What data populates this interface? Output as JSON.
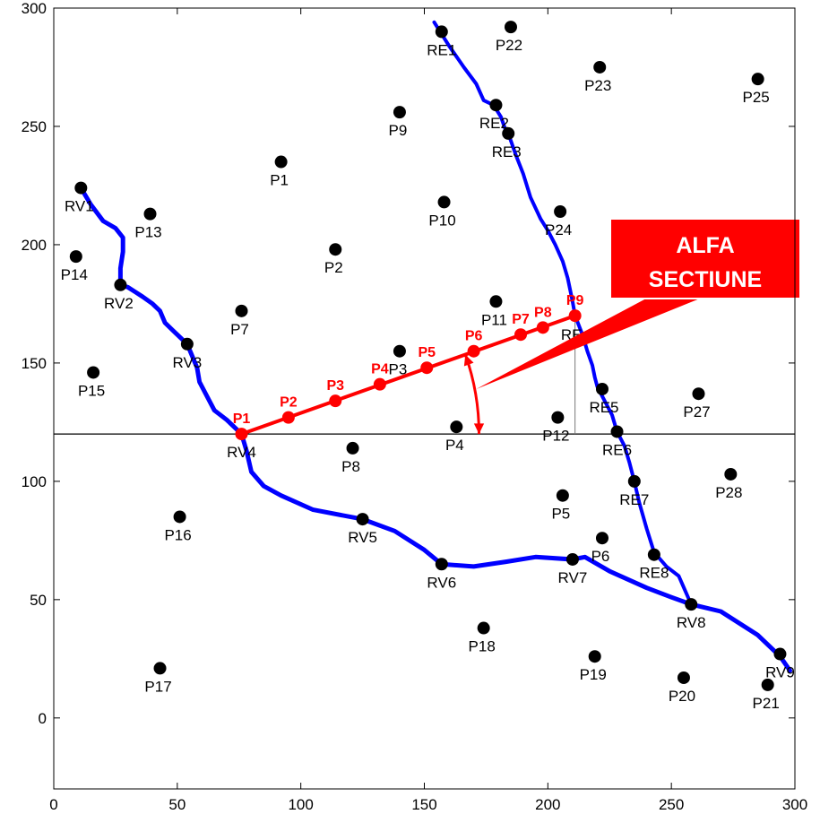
{
  "chart_data": {
    "type": "scatter",
    "xlim": [
      0,
      300
    ],
    "ylim": [
      -30,
      300
    ],
    "x_ticks": [
      0,
      50,
      100,
      150,
      200,
      250,
      300
    ],
    "y_ticks": [
      0,
      50,
      100,
      150,
      200,
      250,
      300
    ],
    "x_tick_labels": [
      "0",
      "50",
      "100",
      "150",
      "200",
      "250",
      "300"
    ],
    "y_tick_labels": [
      "0",
      "50",
      "100",
      "150",
      "200",
      "250",
      "300"
    ],
    "grid": false,
    "colors": {
      "river": "#0000ff",
      "section": "#ff0000",
      "point": "#000000",
      "callout": "#ff0000"
    },
    "reference_line_y": 120,
    "points": [
      {
        "name": "P1",
        "x": 92,
        "y": 235
      },
      {
        "name": "P2",
        "x": 114,
        "y": 198
      },
      {
        "name": "P3",
        "x": 140,
        "y": 155
      },
      {
        "name": "P4",
        "x": 163,
        "y": 123
      },
      {
        "name": "P5",
        "x": 206,
        "y": 94
      },
      {
        "name": "P6",
        "x": 222,
        "y": 76
      },
      {
        "name": "P7",
        "x": 76,
        "y": 172
      },
      {
        "name": "P8",
        "x": 121,
        "y": 114
      },
      {
        "name": "P9",
        "x": 140,
        "y": 256
      },
      {
        "name": "P10",
        "x": 158,
        "y": 218
      },
      {
        "name": "P11",
        "x": 179,
        "y": 176
      },
      {
        "name": "P12",
        "x": 204,
        "y": 127
      },
      {
        "name": "P13",
        "x": 39,
        "y": 213
      },
      {
        "name": "P14",
        "x": 9,
        "y": 195
      },
      {
        "name": "P15",
        "x": 16,
        "y": 146
      },
      {
        "name": "P16",
        "x": 51,
        "y": 85
      },
      {
        "name": "P17",
        "x": 43,
        "y": 21
      },
      {
        "name": "P18",
        "x": 174,
        "y": 38
      },
      {
        "name": "P19",
        "x": 219,
        "y": 26
      },
      {
        "name": "P20",
        "x": 255,
        "y": 17
      },
      {
        "name": "P21",
        "x": 289,
        "y": 14
      },
      {
        "name": "P22",
        "x": 185,
        "y": 292
      },
      {
        "name": "P23",
        "x": 221,
        "y": 275
      },
      {
        "name": "P24",
        "x": 205,
        "y": 214
      },
      {
        "name": "P25",
        "x": 285,
        "y": 270
      },
      {
        "name": "P27",
        "x": 261,
        "y": 137
      },
      {
        "name": "P28",
        "x": 274,
        "y": 103
      }
    ],
    "river_west": {
      "path": [
        [
          11,
          224
        ],
        [
          15,
          217
        ],
        [
          20,
          210
        ],
        [
          25,
          207
        ],
        [
          28,
          203
        ],
        [
          28,
          197
        ],
        [
          27,
          190
        ],
        [
          27,
          183
        ],
        [
          30,
          182
        ],
        [
          33,
          180
        ],
        [
          36,
          178
        ],
        [
          40,
          175
        ],
        [
          43,
          172
        ],
        [
          45,
          167
        ],
        [
          48,
          164
        ],
        [
          51,
          161
        ],
        [
          54,
          158
        ],
        [
          56,
          153
        ],
        [
          58,
          148
        ],
        [
          59,
          142
        ],
        [
          62,
          136
        ],
        [
          65,
          130
        ],
        [
          70,
          126
        ],
        [
          76,
          120
        ],
        [
          78,
          113
        ],
        [
          80,
          104
        ],
        [
          85,
          98
        ],
        [
          92,
          94
        ],
        [
          105,
          88
        ],
        [
          125,
          84
        ],
        [
          138,
          79
        ],
        [
          150,
          71
        ],
        [
          157,
          65
        ],
        [
          170,
          64
        ],
        [
          183,
          66
        ],
        [
          195,
          68
        ],
        [
          210,
          67
        ],
        [
          215,
          68
        ],
        [
          225,
          62
        ],
        [
          240,
          55
        ],
        [
          250,
          51
        ],
        [
          258,
          48
        ],
        [
          270,
          45
        ],
        [
          285,
          35
        ],
        [
          294,
          26
        ],
        [
          298,
          20
        ]
      ],
      "stations": [
        {
          "name": "RV1",
          "x": 11,
          "y": 224
        },
        {
          "name": "RV2",
          "x": 27,
          "y": 183
        },
        {
          "name": "RV3",
          "x": 54,
          "y": 158
        },
        {
          "name": "RV4",
          "x": 76,
          "y": 120
        },
        {
          "name": "RV5",
          "x": 125,
          "y": 84
        },
        {
          "name": "RV6",
          "x": 157,
          "y": 65
        },
        {
          "name": "RV7",
          "x": 210,
          "y": 67
        },
        {
          "name": "RV8",
          "x": 258,
          "y": 48
        },
        {
          "name": "RV9",
          "x": 294,
          "y": 27
        }
      ]
    },
    "river_east": {
      "path": [
        [
          154,
          294
        ],
        [
          160,
          284
        ],
        [
          166,
          275
        ],
        [
          171,
          268
        ],
        [
          174,
          261
        ],
        [
          178,
          259
        ],
        [
          181,
          254
        ],
        [
          183,
          248
        ],
        [
          184,
          247
        ],
        [
          187,
          238
        ],
        [
          190,
          230
        ],
        [
          193,
          220
        ],
        [
          197,
          211
        ],
        [
          200,
          206
        ],
        [
          203,
          200
        ],
        [
          206,
          193
        ],
        [
          208,
          186
        ],
        [
          210,
          176
        ],
        [
          211,
          170
        ],
        [
          214,
          162
        ],
        [
          216,
          155
        ],
        [
          218,
          149
        ],
        [
          219,
          144
        ],
        [
          220,
          140
        ],
        [
          222,
          136
        ],
        [
          226,
          128
        ],
        [
          228,
          121
        ],
        [
          231,
          115
        ],
        [
          233,
          108
        ],
        [
          235,
          100
        ],
        [
          237,
          91
        ],
        [
          240,
          80
        ],
        [
          243,
          70
        ],
        [
          248,
          64
        ],
        [
          253,
          60
        ],
        [
          258,
          48
        ]
      ],
      "stations": [
        {
          "name": "RE1",
          "x": 157,
          "y": 290
        },
        {
          "name": "RE2",
          "x": 179,
          "y": 259
        },
        {
          "name": "RE3",
          "x": 184,
          "y": 247
        },
        {
          "name": "RE5",
          "x": 222,
          "y": 139
        },
        {
          "name": "RE6",
          "x": 228,
          "y": 121
        },
        {
          "name": "RE7",
          "x": 235,
          "y": 100
        },
        {
          "name": "RE8",
          "x": 243,
          "y": 69
        }
      ]
    },
    "covered_station_label": "RE",
    "section": {
      "start": [
        76,
        120
      ],
      "end": [
        211,
        170
      ],
      "points": [
        {
          "name": "P1",
          "x": 76,
          "y": 120
        },
        {
          "name": "P2",
          "x": 95,
          "y": 127
        },
        {
          "name": "P3",
          "x": 114,
          "y": 134
        },
        {
          "name": "P4",
          "x": 132,
          "y": 141
        },
        {
          "name": "P5",
          "x": 151,
          "y": 148
        },
        {
          "name": "P6",
          "x": 170,
          "y": 155
        },
        {
          "name": "P7",
          "x": 189,
          "y": 162
        },
        {
          "name": "P8",
          "x": 198,
          "y": 165
        },
        {
          "name": "P9",
          "x": 211,
          "y": 170
        }
      ]
    },
    "callout": {
      "lines": [
        "ALFA",
        "SECTIUNE"
      ],
      "pointer": [
        171,
        139
      ]
    }
  }
}
